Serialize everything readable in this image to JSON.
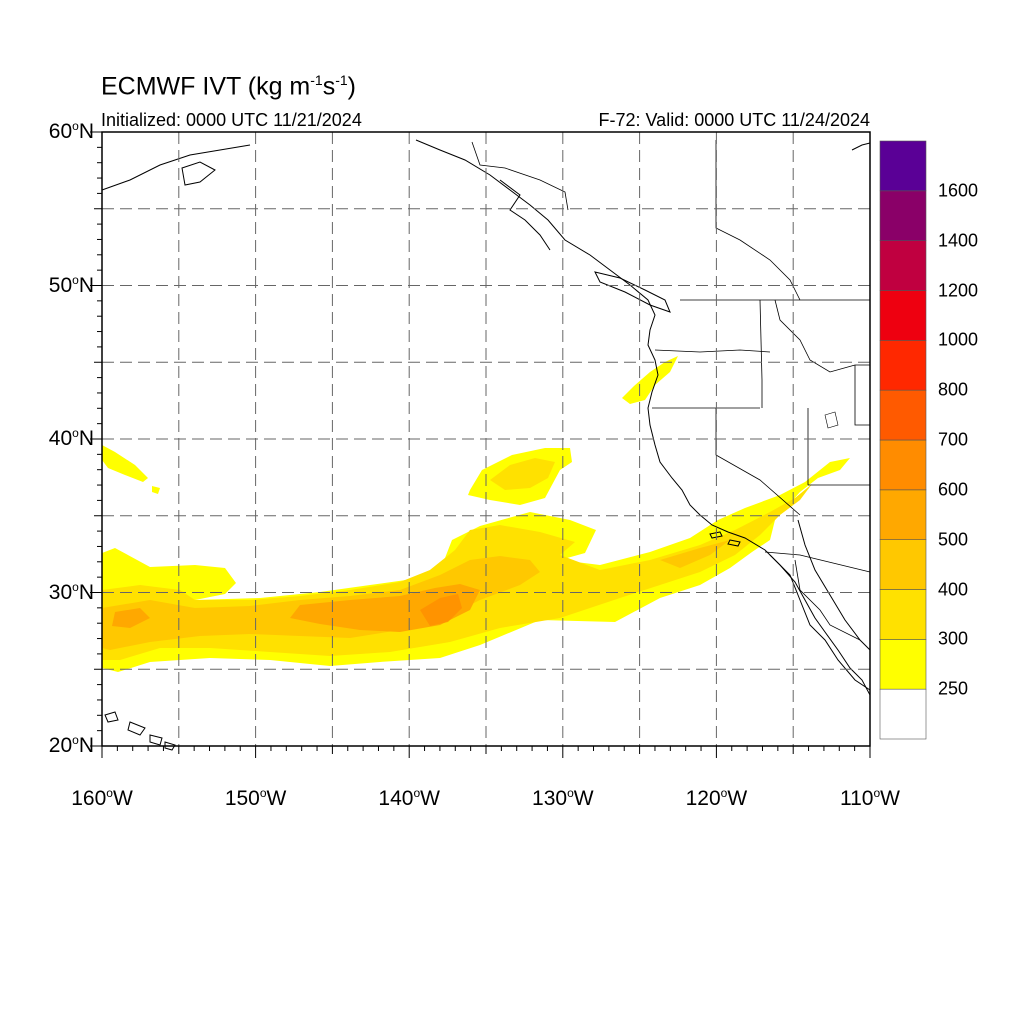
{
  "title": {
    "main": "ECMWF IVT (kg m",
    "exp1": "-1",
    "mid": "s",
    "exp2": "-1",
    "close": ")"
  },
  "subtitle_left": "Initialized: 0000 UTC 11/21/2024",
  "subtitle_right": "F-72: Valid: 0000 UTC 11/24/2024",
  "map": {
    "lat_range": [
      20,
      60
    ],
    "lon_range": [
      -160,
      -110
    ],
    "gridlines": "dashed",
    "lat_labels": [
      {
        "lat": 60,
        "text": "60",
        "hemi": "N"
      },
      {
        "lat": 50,
        "text": "50",
        "hemi": "N"
      },
      {
        "lat": 40,
        "text": "40",
        "hemi": "N"
      },
      {
        "lat": 30,
        "text": "30",
        "hemi": "N"
      },
      {
        "lat": 20,
        "text": "20",
        "hemi": "N"
      }
    ],
    "lon_labels": [
      {
        "lon": -160,
        "text": "160",
        "hemi": "W"
      },
      {
        "lon": -150,
        "text": "150",
        "hemi": "W"
      },
      {
        "lon": -140,
        "text": "140",
        "hemi": "W"
      },
      {
        "lon": -130,
        "text": "130",
        "hemi": "W"
      },
      {
        "lon": -120,
        "text": "120",
        "hemi": "W"
      },
      {
        "lon": -110,
        "text": "110",
        "hemi": "W"
      }
    ]
  },
  "colorbar": {
    "levels": [
      "250",
      "300",
      "400",
      "500",
      "600",
      "700",
      "800",
      "1000",
      "1200",
      "1400",
      "1600"
    ],
    "colors": [
      "#ffffff",
      "#ffff00",
      "#ffe100",
      "#ffc800",
      "#ffa800",
      "#ff8c00",
      "#ff5a00",
      "#ff2800",
      "#ee0010",
      "#c00040",
      "#8a0068",
      "#5a0096"
    ]
  },
  "ivt_field": {
    "units": "kg m-1 s-1",
    "features": [
      {
        "desc": "main atmospheric river band",
        "lon_extent": [
          -160,
          -117
        ],
        "lat_extent": [
          25,
          32
        ],
        "max_level": "600"
      },
      {
        "desc": "plume toward Southern California",
        "lon_extent": [
          -125,
          -111
        ],
        "lat_extent": [
          28,
          38
        ],
        "max_level": "400"
      },
      {
        "desc": "northern lobe",
        "lon_extent": [
          -136,
          -130
        ],
        "lat_extent": [
          36,
          40
        ],
        "max_level": "300"
      },
      {
        "desc": "Oregon coast patch",
        "lon_extent": [
          -126,
          -124
        ],
        "lat_extent": [
          42,
          45
        ],
        "max_level": "300"
      },
      {
        "desc": "Hawaii north patch",
        "lon_extent": [
          -160,
          -157
        ],
        "lat_extent": [
          37,
          40
        ],
        "max_level": "300"
      }
    ]
  }
}
